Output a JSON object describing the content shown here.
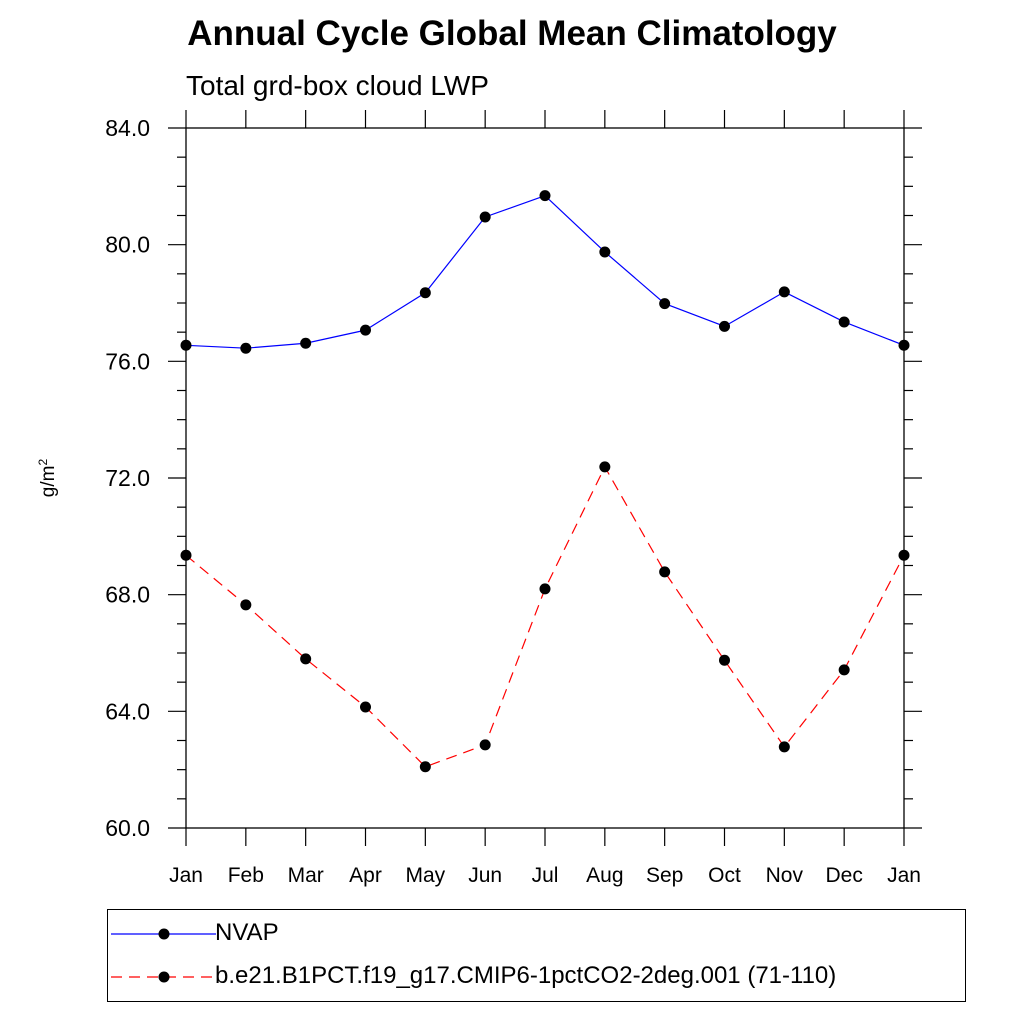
{
  "title": "Annual Cycle Global Mean Climatology",
  "subtitle": "Total grd-box cloud LWP",
  "ylabel_base": "g/m",
  "ylabel_exp": "2",
  "chart_data": {
    "type": "line",
    "categories": [
      "Jan",
      "Feb",
      "Mar",
      "Apr",
      "May",
      "Jun",
      "Jul",
      "Aug",
      "Sep",
      "Oct",
      "Nov",
      "Dec",
      "Jan"
    ],
    "ylim": [
      60.0,
      84.0
    ],
    "yticks": [
      60.0,
      64.0,
      68.0,
      72.0,
      76.0,
      80.0,
      84.0
    ],
    "ytick_labels": [
      "60.0",
      "64.0",
      "68.0",
      "72.0",
      "76.0",
      "80.0",
      "84.0"
    ],
    "series": [
      {
        "name": "NVAP",
        "color": "#0000ff",
        "dash": "solid",
        "values": [
          76.55,
          76.45,
          76.62,
          77.07,
          78.35,
          80.95,
          81.68,
          79.75,
          77.98,
          77.2,
          78.38,
          77.35,
          76.55
        ]
      },
      {
        "name": "b.e21.B1PCT.f19_g17.CMIP6-1pctCO2-2deg.001 (71-110)",
        "color": "#ff0000",
        "dash": "dashed",
        "values": [
          69.35,
          67.65,
          65.8,
          64.15,
          62.1,
          62.85,
          68.2,
          72.38,
          68.78,
          65.75,
          62.78,
          65.42,
          69.35
        ]
      }
    ]
  }
}
